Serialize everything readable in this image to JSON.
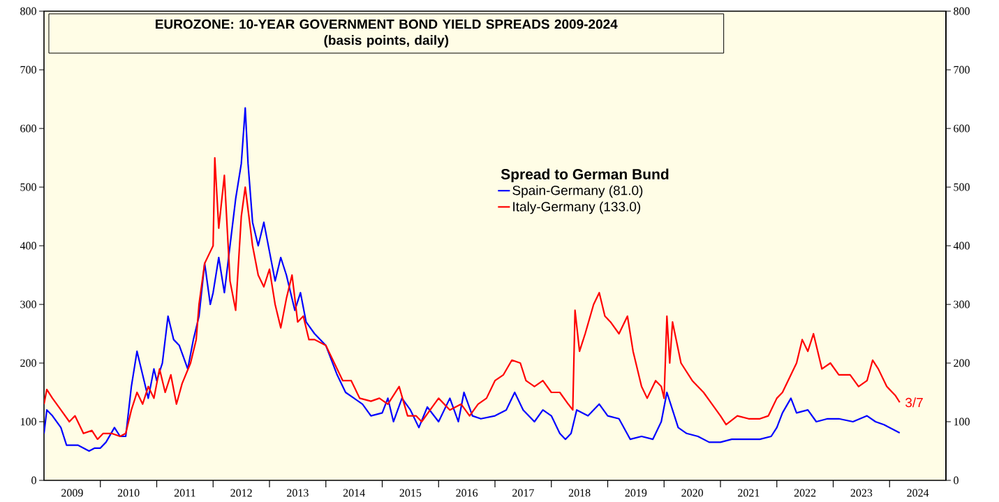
{
  "chart_data": {
    "type": "line",
    "title": "EUROZONE: 10-YEAR GOVERNMENT BOND YIELD SPREADS 2009-2024",
    "subtitle": "(basis points, daily)",
    "legend_title": "Spread to German Bund",
    "legend": "top right",
    "xlim": [
      2009,
      2025
    ],
    "xticks": [
      {
        "value": 2009.5,
        "label": "2009"
      },
      {
        "value": 2010.5,
        "label": "2010"
      },
      {
        "value": 2011.5,
        "label": "2011"
      },
      {
        "value": 2012.5,
        "label": "2012"
      },
      {
        "value": 2013.5,
        "label": "2013"
      },
      {
        "value": 2014.5,
        "label": "2014"
      },
      {
        "value": 2015.5,
        "label": "2015"
      },
      {
        "value": 2016.5,
        "label": "2016"
      },
      {
        "value": 2017.5,
        "label": "2017"
      },
      {
        "value": 2018.5,
        "label": "2018"
      },
      {
        "value": 2019.5,
        "label": "2019"
      },
      {
        "value": 2020.5,
        "label": "2020"
      },
      {
        "value": 2021.5,
        "label": "2021"
      },
      {
        "value": 2022.5,
        "label": "2022"
      },
      {
        "value": 2023.5,
        "label": "2023"
      },
      {
        "value": 2024.5,
        "label": "2024"
      },
      {
        "value": 2010,
        "label": null
      },
      {
        "value": 2011,
        "label": null
      },
      {
        "value": 2012,
        "label": null
      },
      {
        "value": 2013,
        "label": null
      },
      {
        "value": 2014,
        "label": null
      },
      {
        "value": 2015,
        "label": null
      },
      {
        "value": 2016,
        "label": null
      },
      {
        "value": 2017,
        "label": null
      },
      {
        "value": 2018,
        "label": null
      },
      {
        "value": 2019,
        "label": null
      },
      {
        "value": 2020,
        "label": null
      },
      {
        "value": 2021,
        "label": null
      },
      {
        "value": 2022,
        "label": null
      },
      {
        "value": 2023,
        "label": null
      },
      {
        "value": 2024,
        "label": null
      }
    ],
    "ylim": [
      0,
      800
    ],
    "yticks": [
      0,
      100,
      200,
      300,
      400,
      500,
      600,
      700,
      800
    ],
    "y2lim": [
      0,
      800
    ],
    "y2ticks": [
      0,
      100,
      200,
      300,
      400,
      500,
      600,
      700,
      800
    ],
    "series": [
      {
        "name": "Spain-Germany (81.0)",
        "color": "#0000ff",
        "x": [
          2009.0,
          2009.05,
          2009.15,
          2009.3,
          2009.4,
          2009.6,
          2009.8,
          2009.9,
          2010.0,
          2010.1,
          2010.25,
          2010.35,
          2010.45,
          2010.55,
          2010.65,
          2010.75,
          2010.85,
          2010.95,
          2011.0,
          2011.1,
          2011.2,
          2011.3,
          2011.4,
          2011.55,
          2011.65,
          2011.75,
          2011.85,
          2011.95,
          2012.0,
          2012.1,
          2012.2,
          2012.3,
          2012.4,
          2012.5,
          2012.57,
          2012.62,
          2012.7,
          2012.8,
          2012.9,
          2013.0,
          2013.1,
          2013.2,
          2013.3,
          2013.45,
          2013.55,
          2013.65,
          2013.8,
          2014.0,
          2014.2,
          2014.35,
          2014.5,
          2014.65,
          2014.8,
          2015.0,
          2015.1,
          2015.2,
          2015.35,
          2015.5,
          2015.65,
          2015.8,
          2016.0,
          2016.2,
          2016.35,
          2016.45,
          2016.6,
          2016.75,
          2017.0,
          2017.2,
          2017.35,
          2017.5,
          2017.7,
          2017.85,
          2018.0,
          2018.15,
          2018.25,
          2018.35,
          2018.45,
          2018.65,
          2018.85,
          2019.0,
          2019.2,
          2019.4,
          2019.6,
          2019.8,
          2019.95,
          2020.05,
          2020.15,
          2020.25,
          2020.4,
          2020.6,
          2020.8,
          2021.0,
          2021.2,
          2021.45,
          2021.7,
          2021.9,
          2022.0,
          2022.1,
          2022.25,
          2022.35,
          2022.55,
          2022.7,
          2022.9,
          2023.1,
          2023.35,
          2023.6,
          2023.75,
          2023.9,
          2024.18
        ],
        "values": [
          80,
          120,
          110,
          90,
          60,
          60,
          50,
          55,
          55,
          65,
          90,
          75,
          75,
          160,
          220,
          180,
          140,
          190,
          170,
          200,
          280,
          240,
          230,
          190,
          240,
          280,
          370,
          300,
          320,
          380,
          320,
          400,
          480,
          540,
          635,
          540,
          440,
          400,
          440,
          390,
          340,
          380,
          350,
          290,
          320,
          270,
          250,
          230,
          180,
          150,
          140,
          130,
          110,
          115,
          140,
          100,
          140,
          120,
          90,
          125,
          100,
          140,
          100,
          150,
          110,
          105,
          110,
          120,
          150,
          120,
          100,
          120,
          110,
          80,
          70,
          80,
          120,
          110,
          130,
          110,
          105,
          70,
          75,
          70,
          100,
          150,
          120,
          90,
          80,
          75,
          65,
          65,
          70,
          70,
          70,
          75,
          90,
          115,
          140,
          115,
          120,
          100,
          105,
          105,
          100,
          110,
          100,
          95,
          81
        ]
      },
      {
        "name": "Italy-Germany (133.0)",
        "color": "#ff0000",
        "x": [
          2009.0,
          2009.05,
          2009.15,
          2009.3,
          2009.45,
          2009.55,
          2009.7,
          2009.85,
          2009.95,
          2010.05,
          2010.2,
          2010.35,
          2010.45,
          2010.55,
          2010.65,
          2010.75,
          2010.85,
          2010.95,
          2011.05,
          2011.15,
          2011.25,
          2011.35,
          2011.45,
          2011.6,
          2011.7,
          2011.75,
          2011.85,
          2011.95,
          2012.0,
          2012.03,
          2012.1,
          2012.2,
          2012.3,
          2012.4,
          2012.5,
          2012.57,
          2012.7,
          2012.8,
          2012.9,
          2013.0,
          2013.1,
          2013.2,
          2013.3,
          2013.4,
          2013.5,
          2013.6,
          2013.7,
          2013.8,
          2014.0,
          2014.15,
          2014.3,
          2014.45,
          2014.6,
          2014.8,
          2014.95,
          2015.1,
          2015.3,
          2015.45,
          2015.6,
          2015.7,
          2015.85,
          2016.0,
          2016.2,
          2016.4,
          2016.55,
          2016.7,
          2016.85,
          2017.0,
          2017.15,
          2017.3,
          2017.45,
          2017.55,
          2017.7,
          2017.85,
          2018.0,
          2018.15,
          2018.3,
          2018.38,
          2018.42,
          2018.5,
          2018.6,
          2018.75,
          2018.85,
          2018.95,
          2019.05,
          2019.2,
          2019.35,
          2019.45,
          2019.6,
          2019.7,
          2019.85,
          2019.95,
          2020.0,
          2020.05,
          2020.1,
          2020.15,
          2020.3,
          2020.5,
          2020.7,
          2020.85,
          2021.0,
          2021.1,
          2021.3,
          2021.5,
          2021.7,
          2021.85,
          2022.0,
          2022.1,
          2022.25,
          2022.35,
          2022.45,
          2022.55,
          2022.65,
          2022.8,
          2022.95,
          2023.1,
          2023.3,
          2023.45,
          2023.6,
          2023.7,
          2023.8,
          2023.95,
          2024.1,
          2024.18
        ],
        "values": [
          130,
          155,
          140,
          120,
          100,
          110,
          80,
          85,
          70,
          80,
          80,
          75,
          80,
          120,
          150,
          130,
          160,
          140,
          190,
          150,
          180,
          130,
          165,
          200,
          240,
          300,
          370,
          390,
          400,
          550,
          430,
          520,
          340,
          290,
          450,
          500,
          400,
          350,
          330,
          360,
          300,
          260,
          310,
          350,
          270,
          280,
          240,
          240,
          230,
          200,
          170,
          170,
          140,
          135,
          140,
          130,
          160,
          110,
          110,
          100,
          120,
          140,
          120,
          130,
          110,
          130,
          140,
          170,
          180,
          205,
          200,
          170,
          160,
          170,
          150,
          150,
          130,
          120,
          290,
          220,
          250,
          300,
          320,
          280,
          270,
          250,
          280,
          220,
          160,
          140,
          170,
          160,
          140,
          280,
          200,
          270,
          200,
          170,
          150,
          130,
          110,
          95,
          110,
          105,
          105,
          110,
          140,
          150,
          180,
          200,
          240,
          220,
          250,
          190,
          200,
          180,
          180,
          160,
          170,
          205,
          190,
          160,
          145,
          133
        ]
      }
    ],
    "annotations": [
      {
        "text": "3/7",
        "x": 2024.18,
        "y": 133
      }
    ]
  }
}
